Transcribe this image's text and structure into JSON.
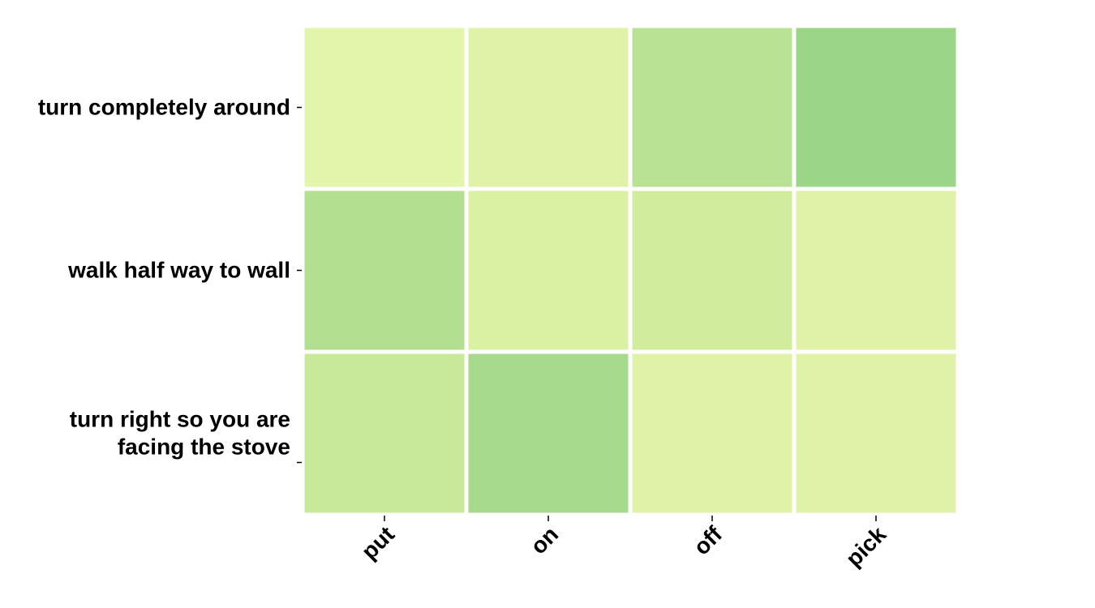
{
  "chart_data": {
    "type": "heatmap",
    "title": "",
    "xlabel": "",
    "ylabel": "",
    "x_categories": [
      "put",
      "on",
      "off",
      "pick"
    ],
    "y_categories": [
      "turn completely around",
      "walk half way to wall",
      "turn right so you are facing the stove"
    ],
    "values": [
      [
        0.02,
        0.1,
        0.45,
        0.6
      ],
      [
        0.5,
        0.2,
        0.3,
        0.1
      ],
      [
        0.35,
        0.55,
        0.1,
        0.1
      ]
    ],
    "value_range": [
      0,
      1
    ],
    "colormap": [
      "#e4f4ac",
      "#d8efa0",
      "#b3df91",
      "#78c679",
      "#31a354"
    ],
    "grid": false,
    "legend": "none"
  }
}
